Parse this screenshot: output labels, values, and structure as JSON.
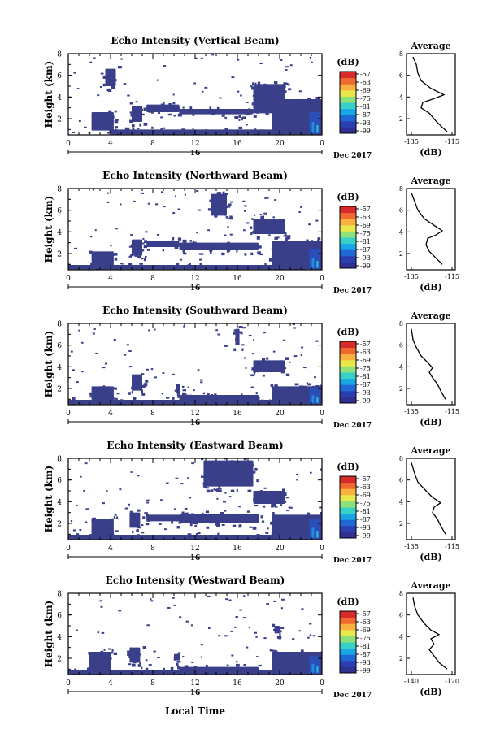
{
  "figure": {
    "xlabel": "Local Time",
    "date_label": "Dec 2017",
    "day_label": "16",
    "ylabel": "Height (km)",
    "colorbar_unit": "(dB)",
    "profile_title": "Average",
    "profile_xlabel": "(dB)"
  },
  "colorscale": {
    "ticks": [
      "-57",
      "-63",
      "-69",
      "-75",
      "-81",
      "-87",
      "-93",
      "-99"
    ],
    "colors": [
      "#2e3192",
      "#2b3fb0",
      "#1f68d6",
      "#1aa6e6",
      "#39d0c8",
      "#8ee07a",
      "#e8e84a",
      "#f8b040",
      "#f06a30",
      "#d72a2a"
    ]
  },
  "chart_data": [
    {
      "type": "heatmap",
      "title": "Echo Intensity (Vertical Beam)",
      "xlabel": "Local Time",
      "ylabel": "Height (km)",
      "x_ticks": [
        "0",
        "4",
        "8",
        "12",
        "16",
        "20",
        "0"
      ],
      "y_ticks": [
        "2",
        "4",
        "6",
        "8"
      ],
      "xlim": [
        0,
        24
      ],
      "ylim": [
        0.5,
        8
      ],
      "blobs": [
        {
          "x": [
            2.2,
            4.3
          ],
          "y": [
            0.9,
            2.6
          ]
        },
        {
          "x": [
            6.0,
            7.0
          ],
          "y": [
            1.7,
            3.2
          ]
        },
        {
          "x": [
            7.4,
            10.5
          ],
          "y": [
            2.6,
            3.3
          ]
        },
        {
          "x": [
            10.5,
            17.5
          ],
          "y": [
            2.4,
            2.9
          ]
        },
        {
          "x": [
            17.5,
            20.5
          ],
          "y": [
            2.5,
            5.2
          ]
        },
        {
          "x": [
            19.3,
            24
          ],
          "y": [
            0.6,
            3.8
          ]
        },
        {
          "x": [
            3.5,
            4.5
          ],
          "y": [
            5.0,
            6.6
          ]
        },
        {
          "x": [
            4.0,
            24
          ],
          "y": [
            0.55,
            1.0
          ]
        }
      ],
      "hot": {
        "x": [
          22.8,
          23.8
        ],
        "y": [
          0.6,
          2.6
        ]
      },
      "profile": {
        "x_ticks": [
          "-135",
          "-115"
        ],
        "xlim": [
          -140,
          -110
        ],
        "ylim": [
          0.5,
          8
        ],
        "points": [
          [
            -136,
            7.7
          ],
          [
            -134,
            7
          ],
          [
            -133,
            6.2
          ],
          [
            -131,
            5.5
          ],
          [
            -125,
            4.8
          ],
          [
            -117,
            4.2
          ],
          [
            -124,
            3.8
          ],
          [
            -130,
            3.5
          ],
          [
            -131,
            3
          ],
          [
            -126,
            2.5
          ],
          [
            -122,
            1.8
          ],
          [
            -118,
            1.2
          ],
          [
            -115,
            0.8
          ]
        ]
      }
    },
    {
      "type": "heatmap",
      "title": "Echo Intensity (Northward Beam)",
      "xlabel": "Local Time",
      "ylabel": "Height (km)",
      "x_ticks": [
        "0",
        "4",
        "8",
        "12",
        "16",
        "20",
        "0"
      ],
      "y_ticks": [
        "2",
        "4",
        "6",
        "8"
      ],
      "xlim": [
        0,
        24
      ],
      "ylim": [
        0.5,
        8
      ],
      "blobs": [
        {
          "x": [
            2.2,
            4.3
          ],
          "y": [
            0.9,
            2.2
          ]
        },
        {
          "x": [
            6.0,
            7.0
          ],
          "y": [
            1.8,
            3.3
          ]
        },
        {
          "x": [
            7.4,
            10.5
          ],
          "y": [
            2.6,
            3.2
          ]
        },
        {
          "x": [
            10.5,
            18.0
          ],
          "y": [
            2.3,
            3.0
          ]
        },
        {
          "x": [
            17.5,
            20.5
          ],
          "y": [
            3.8,
            5.2
          ]
        },
        {
          "x": [
            19.3,
            24
          ],
          "y": [
            0.6,
            3.2
          ]
        },
        {
          "x": [
            13.5,
            15.0
          ],
          "y": [
            5.5,
            7.5
          ]
        },
        {
          "x": [
            0,
            24
          ],
          "y": [
            0.55,
            0.95
          ]
        }
      ],
      "hot": {
        "x": [
          22.8,
          23.8
        ],
        "y": [
          0.6,
          2.4
        ]
      },
      "profile": {
        "x_ticks": [
          "-135",
          "-115"
        ],
        "xlim": [
          -140,
          -110
        ],
        "ylim": [
          0.5,
          8
        ],
        "points": [
          [
            -137,
            7.6
          ],
          [
            -135,
            6.8
          ],
          [
            -133,
            6.0
          ],
          [
            -129,
            5.2
          ],
          [
            -123,
            4.6
          ],
          [
            -118,
            4.1
          ],
          [
            -122,
            3.7
          ],
          [
            -127,
            3.4
          ],
          [
            -128,
            2.8
          ],
          [
            -126,
            2.2
          ],
          [
            -122,
            1.6
          ],
          [
            -118,
            1.0
          ]
        ]
      }
    },
    {
      "type": "heatmap",
      "title": "Echo Intensity (Southward Beam)",
      "xlabel": "Local Time",
      "ylabel": "Height (km)",
      "x_ticks": [
        "0",
        "4",
        "8",
        "12",
        "16",
        "20",
        "0"
      ],
      "y_ticks": [
        "2",
        "4",
        "6",
        "8"
      ],
      "xlim": [
        0,
        24
      ],
      "ylim": [
        0.5,
        8
      ],
      "blobs": [
        {
          "x": [
            2.2,
            4.3
          ],
          "y": [
            0.9,
            2.2
          ]
        },
        {
          "x": [
            6.0,
            7.0
          ],
          "y": [
            1.8,
            3.3
          ]
        },
        {
          "x": [
            10.2,
            10.6
          ],
          "y": [
            1.6,
            2.4
          ]
        },
        {
          "x": [
            10.5,
            18.0
          ],
          "y": [
            0.7,
            1.4
          ]
        },
        {
          "x": [
            17.5,
            20.5
          ],
          "y": [
            3.5,
            4.6
          ]
        },
        {
          "x": [
            19.3,
            24
          ],
          "y": [
            0.6,
            2.2
          ]
        },
        {
          "x": [
            15.8,
            16.2
          ],
          "y": [
            6.0,
            7.5
          ]
        },
        {
          "x": [
            0,
            24
          ],
          "y": [
            0.55,
            0.95
          ]
        }
      ],
      "hot": {
        "x": [
          22.8,
          23.8
        ],
        "y": [
          0.6,
          2.0
        ]
      },
      "profile": {
        "x_ticks": [
          "-135",
          "-115"
        ],
        "xlim": [
          -140,
          -110
        ],
        "ylim": [
          0.5,
          8
        ],
        "points": [
          [
            -137,
            7.5
          ],
          [
            -136,
            6.5
          ],
          [
            -134,
            5.8
          ],
          [
            -131,
            5.0
          ],
          [
            -127,
            4.4
          ],
          [
            -124,
            3.9
          ],
          [
            -126,
            3.5
          ],
          [
            -124,
            3.0
          ],
          [
            -121,
            2.4
          ],
          [
            -119,
            1.8
          ],
          [
            -116,
            1.0
          ]
        ]
      }
    },
    {
      "type": "heatmap",
      "title": "Echo Intensity (Eastward Beam)",
      "xlabel": "Local Time",
      "ylabel": "Height (km)",
      "x_ticks": [
        "0",
        "4",
        "8",
        "12",
        "16",
        "20",
        "0"
      ],
      "y_ticks": [
        "2",
        "4",
        "6",
        "8"
      ],
      "xlim": [
        0,
        24
      ],
      "ylim": [
        0.5,
        8
      ],
      "blobs": [
        {
          "x": [
            2.2,
            4.3
          ],
          "y": [
            0.9,
            2.4
          ]
        },
        {
          "x": [
            5.8,
            6.8
          ],
          "y": [
            1.6,
            3.0
          ]
        },
        {
          "x": [
            7.4,
            10.5
          ],
          "y": [
            2.2,
            2.8
          ]
        },
        {
          "x": [
            10.5,
            18.0
          ],
          "y": [
            2.0,
            2.9
          ]
        },
        {
          "x": [
            17.5,
            20.5
          ],
          "y": [
            3.8,
            5.0
          ]
        },
        {
          "x": [
            19.3,
            24
          ],
          "y": [
            0.6,
            2.8
          ]
        },
        {
          "x": [
            12.8,
            17.5
          ],
          "y": [
            5.4,
            7.8
          ]
        },
        {
          "x": [
            0,
            24
          ],
          "y": [
            0.55,
            0.95
          ]
        }
      ],
      "hot": {
        "x": [
          22.8,
          23.8
        ],
        "y": [
          0.6,
          2.4
        ]
      },
      "profile": {
        "x_ticks": [
          "-135",
          "-115"
        ],
        "xlim": [
          -140,
          -110
        ],
        "ylim": [
          0.5,
          8
        ],
        "points": [
          [
            -137,
            7.6
          ],
          [
            -135,
            6.6
          ],
          [
            -133,
            5.8
          ],
          [
            -128,
            5.0
          ],
          [
            -124,
            4.4
          ],
          [
            -119,
            3.9
          ],
          [
            -123,
            3.5
          ],
          [
            -124,
            3.0
          ],
          [
            -121,
            2.4
          ],
          [
            -119,
            1.8
          ],
          [
            -116,
            1.0
          ]
        ]
      }
    },
    {
      "type": "heatmap",
      "title": "Echo Intensity (Westward Beam)",
      "xlabel": "Local Time",
      "ylabel": "Height (km)",
      "x_ticks": [
        "0",
        "4",
        "8",
        "12",
        "16",
        "20",
        "0"
      ],
      "y_ticks": [
        "2",
        "4",
        "6",
        "8"
      ],
      "xlim": [
        0,
        24
      ],
      "ylim": [
        0.5,
        8
      ],
      "blobs": [
        {
          "x": [
            2.0,
            4.0
          ],
          "y": [
            0.9,
            2.6
          ]
        },
        {
          "x": [
            5.8,
            6.8
          ],
          "y": [
            1.6,
            3.0
          ]
        },
        {
          "x": [
            10.0,
            10.6
          ],
          "y": [
            1.8,
            2.4
          ]
        },
        {
          "x": [
            10.5,
            18.0
          ],
          "y": [
            0.7,
            1.2
          ]
        },
        {
          "x": [
            19.5,
            20.0
          ],
          "y": [
            4.3,
            5.0
          ]
        },
        {
          "x": [
            19.3,
            24
          ],
          "y": [
            0.6,
            2.6
          ]
        },
        {
          "x": [
            0,
            24
          ],
          "y": [
            0.55,
            0.95
          ]
        }
      ],
      "hot": {
        "x": [
          22.8,
          23.8
        ],
        "y": [
          0.6,
          2.2
        ]
      },
      "profile": {
        "x_ticks": [
          "-140",
          "-120"
        ],
        "xlim": [
          -145,
          -115
        ],
        "ylim": [
          0.5,
          8
        ],
        "points": [
          [
            -141,
            7.6
          ],
          [
            -140,
            6.8
          ],
          [
            -138,
            6.0
          ],
          [
            -134,
            5.2
          ],
          [
            -130,
            4.6
          ],
          [
            -125,
            4.2
          ],
          [
            -130,
            3.8
          ],
          [
            -128,
            3.3
          ],
          [
            -131,
            2.8
          ],
          [
            -128,
            2.2
          ],
          [
            -125,
            1.6
          ],
          [
            -120,
            1.0
          ]
        ]
      }
    }
  ]
}
